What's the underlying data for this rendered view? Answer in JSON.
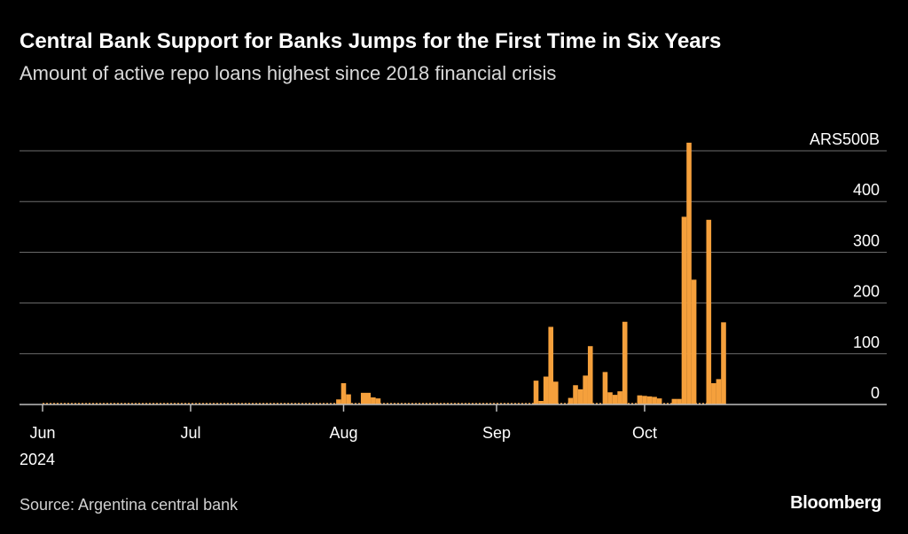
{
  "title": "Central Bank Support for Banks Jumps for the First Time in Six Years",
  "subtitle": "Amount of active repo loans highest since 2018 financial crisis",
  "source": "Source: Argentina central bank",
  "logo": "Bloomberg",
  "colors": {
    "background": "#000000",
    "bar": "#f5a03c",
    "gridline": "#6e6e6e",
    "text": "#ffffff"
  },
  "chart_data": {
    "type": "bar",
    "title": "Central Bank Support for Banks Jumps for the First Time in Six Years",
    "subtitle": "Amount of active repo loans highest since 2018 financial crisis",
    "xlabel": "",
    "ylabel": "",
    "y_unit_label": "ARS500B",
    "ylim": [
      0,
      500
    ],
    "y_ticks": [
      0,
      100,
      200,
      300,
      400,
      500
    ],
    "y_tick_labels": [
      "0",
      "100",
      "200",
      "300",
      "400",
      "ARS500B"
    ],
    "grid": true,
    "legend": "none",
    "x_tick_labels": [
      {
        "date": "2024-06-01",
        "label": "Jun",
        "sublabel": "2024"
      },
      {
        "date": "2024-07-01",
        "label": "Jul"
      },
      {
        "date": "2024-08-01",
        "label": "Aug"
      },
      {
        "date": "2024-09-01",
        "label": "Sep"
      },
      {
        "date": "2024-10-01",
        "label": "Oct"
      }
    ],
    "series": [
      {
        "points": [
          {
            "date": "2024-07-31",
            "value": 10
          },
          {
            "date": "2024-08-01",
            "value": 42
          },
          {
            "date": "2024-08-02",
            "value": 20
          },
          {
            "date": "2024-08-05",
            "value": 23
          },
          {
            "date": "2024-08-06",
            "value": 23
          },
          {
            "date": "2024-08-07",
            "value": 14
          },
          {
            "date": "2024-08-08",
            "value": 12
          },
          {
            "date": "2024-09-09",
            "value": 47
          },
          {
            "date": "2024-09-10",
            "value": 7
          },
          {
            "date": "2024-09-11",
            "value": 55
          },
          {
            "date": "2024-09-12",
            "value": 153
          },
          {
            "date": "2024-09-13",
            "value": 45
          },
          {
            "date": "2024-09-16",
            "value": 13
          },
          {
            "date": "2024-09-17",
            "value": 38
          },
          {
            "date": "2024-09-18",
            "value": 30
          },
          {
            "date": "2024-09-19",
            "value": 57
          },
          {
            "date": "2024-09-20",
            "value": 115
          },
          {
            "date": "2024-09-23",
            "value": 64
          },
          {
            "date": "2024-09-24",
            "value": 24
          },
          {
            "date": "2024-09-25",
            "value": 19
          },
          {
            "date": "2024-09-26",
            "value": 26
          },
          {
            "date": "2024-09-27",
            "value": 163
          },
          {
            "date": "2024-09-30",
            "value": 18
          },
          {
            "date": "2024-10-01",
            "value": 17
          },
          {
            "date": "2024-10-02",
            "value": 16
          },
          {
            "date": "2024-10-03",
            "value": 15
          },
          {
            "date": "2024-10-04",
            "value": 12
          },
          {
            "date": "2024-10-07",
            "value": 11
          },
          {
            "date": "2024-10-08",
            "value": 11
          },
          {
            "date": "2024-10-09",
            "value": 370
          },
          {
            "date": "2024-10-10",
            "value": 516
          },
          {
            "date": "2024-10-11",
            "value": 246
          },
          {
            "date": "2024-10-14",
            "value": 364
          },
          {
            "date": "2024-10-15",
            "value": 42
          },
          {
            "date": "2024-10-16",
            "value": 50
          },
          {
            "date": "2024-10-17",
            "value": 162
          }
        ]
      }
    ]
  }
}
